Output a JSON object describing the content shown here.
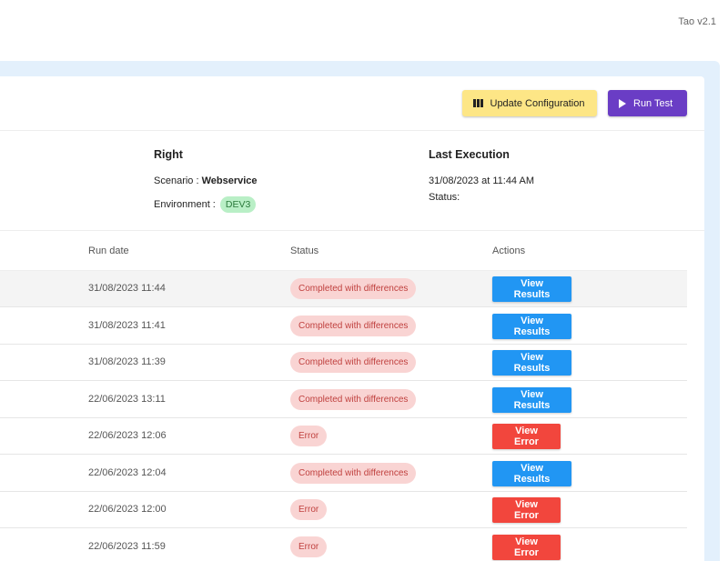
{
  "app": {
    "version": "Tao v2.1"
  },
  "toolbar": {
    "update_config_label": "Update Configuration",
    "run_test_label": "Run Test"
  },
  "details": {
    "title": "Right",
    "scenario_label": "Scenario : ",
    "scenario_value": "Webservice",
    "environment_label": "Environment : ",
    "environment_value": "DEV3"
  },
  "last_execution": {
    "title": "Last Execution",
    "datetime": "31/08/2023 at 11:44 AM",
    "status_label": "Status:"
  },
  "table": {
    "headers": {
      "run_date": "Run date",
      "status": "Status",
      "actions": "Actions"
    },
    "rows": [
      {
        "run_date": "31/08/2023 11:44",
        "status": "Completed with differences",
        "action": "View Results"
      },
      {
        "run_date": "31/08/2023 11:41",
        "status": "Completed with differences",
        "action": "View Results"
      },
      {
        "run_date": "31/08/2023 11:39",
        "status": "Completed with differences",
        "action": "View Results"
      },
      {
        "run_date": "22/06/2023 13:11",
        "status": "Completed with differences",
        "action": "View Results"
      },
      {
        "run_date": "22/06/2023 12:06",
        "status": "Error",
        "action": "View Error"
      },
      {
        "run_date": "22/06/2023 12:04",
        "status": "Completed with differences",
        "action": "View Results"
      },
      {
        "run_date": "22/06/2023 12:00",
        "status": "Error",
        "action": "View Error"
      },
      {
        "run_date": "22/06/2023 11:59",
        "status": "Error",
        "action": "View Error"
      }
    ]
  },
  "colors": {
    "run_test": "#6a3dc5",
    "update_config": "#fde686",
    "view_results": "#2196f3",
    "view_error": "#f2463d",
    "status_pill_bg": "#f9d4d3",
    "env_badge_bg": "#b9efc6"
  }
}
